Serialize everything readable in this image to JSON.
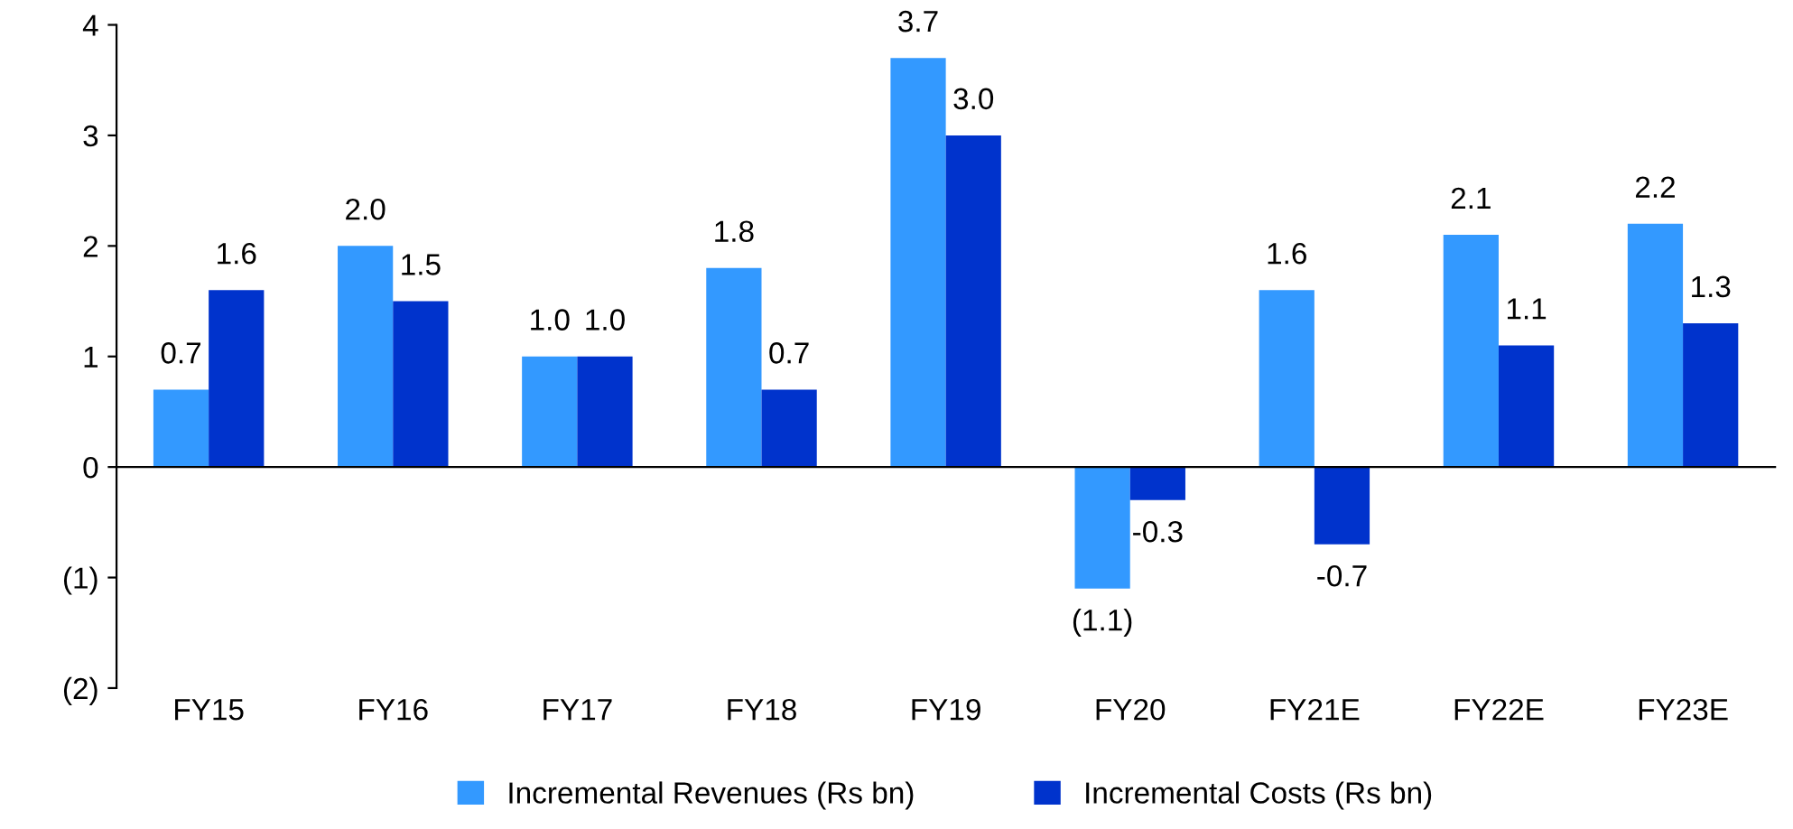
{
  "chart_data": {
    "type": "bar",
    "categories": [
      "FY15",
      "FY16",
      "FY17",
      "FY18",
      "FY19",
      "FY20",
      "FY21E",
      "FY22E",
      "FY23E"
    ],
    "series": [
      {
        "name": "Incremental Revenues (Rs bn)",
        "color": "#3399ff",
        "values": [
          0.7,
          2.0,
          1.0,
          1.8,
          3.7,
          -1.1,
          1.6,
          2.1,
          2.2
        ],
        "value_labels": [
          "0.7",
          "2.0",
          "1.0",
          "1.8",
          "3.7",
          "(1.1)",
          "1.6",
          "2.1",
          "2.2"
        ]
      },
      {
        "name": "Incremental Costs (Rs bn)",
        "color": "#0033cc",
        "values": [
          1.6,
          1.5,
          1.0,
          0.7,
          3.0,
          -0.3,
          -0.7,
          1.1,
          1.3
        ],
        "value_labels": [
          "1.6",
          "1.5",
          "1.0",
          "0.7",
          "3.0",
          "-0.3",
          "-0.7",
          "1.1",
          "1.3"
        ]
      }
    ],
    "ylim": [
      -2,
      4
    ],
    "yticks": [
      {
        "value": -2,
        "label": "(2)"
      },
      {
        "value": -1,
        "label": "(1)"
      },
      0,
      1,
      2,
      3,
      4
    ],
    "legend": "bottom"
  }
}
